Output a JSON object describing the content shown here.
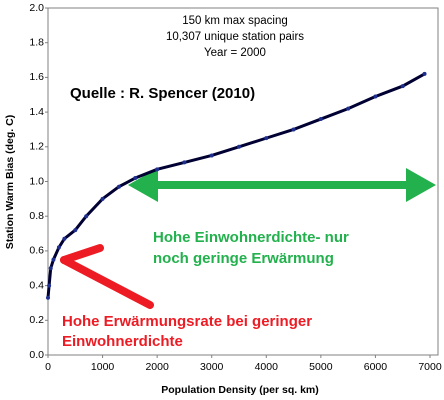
{
  "chart_data": {
    "type": "line",
    "xlabel": "Population Density (per sq. km)",
    "ylabel": "Station Warm Bias (deg. C)",
    "annotations": [
      "150 km max spacing",
      "10,307 unique station pairs",
      "Year = 2000",
      "Quelle : R. Spencer (2010)",
      "Hohe Einwohnerdichte- nur",
      "noch geringe Erwärmung",
      "Hohe Erwärmungsrate bei geringer",
      "Einwohnerdichte"
    ],
    "x": [
      0,
      20,
      50,
      100,
      200,
      300,
      500,
      700,
      1000,
      1300,
      1600,
      2000,
      2500,
      3000,
      3500,
      4000,
      4500,
      5000,
      5500,
      6000,
      6500,
      6900
    ],
    "series": [
      {
        "name": "Station Warm Bias",
        "color": "#000033",
        "marker_color": "#1f2f8f",
        "values": [
          0.33,
          0.4,
          0.5,
          0.55,
          0.62,
          0.67,
          0.72,
          0.8,
          0.9,
          0.97,
          1.02,
          1.07,
          1.11,
          1.15,
          1.2,
          1.25,
          1.3,
          1.36,
          1.42,
          1.49,
          1.55,
          1.62
        ]
      }
    ],
    "xlim": [
      0,
      7000
    ],
    "xticks": [
      0,
      1000,
      2000,
      3000,
      4000,
      5000,
      6000,
      7000
    ],
    "ylim": [
      0,
      2
    ],
    "yticks": [
      {
        "value": 0,
        "label": "0.0"
      },
      0.2,
      0.4,
      0.6,
      0.8,
      {
        "value": 1,
        "label": "1.0"
      },
      1.2,
      1.4,
      1.6,
      1.8,
      {
        "value": 2,
        "label": "2.0"
      }
    ],
    "grid": false
  }
}
